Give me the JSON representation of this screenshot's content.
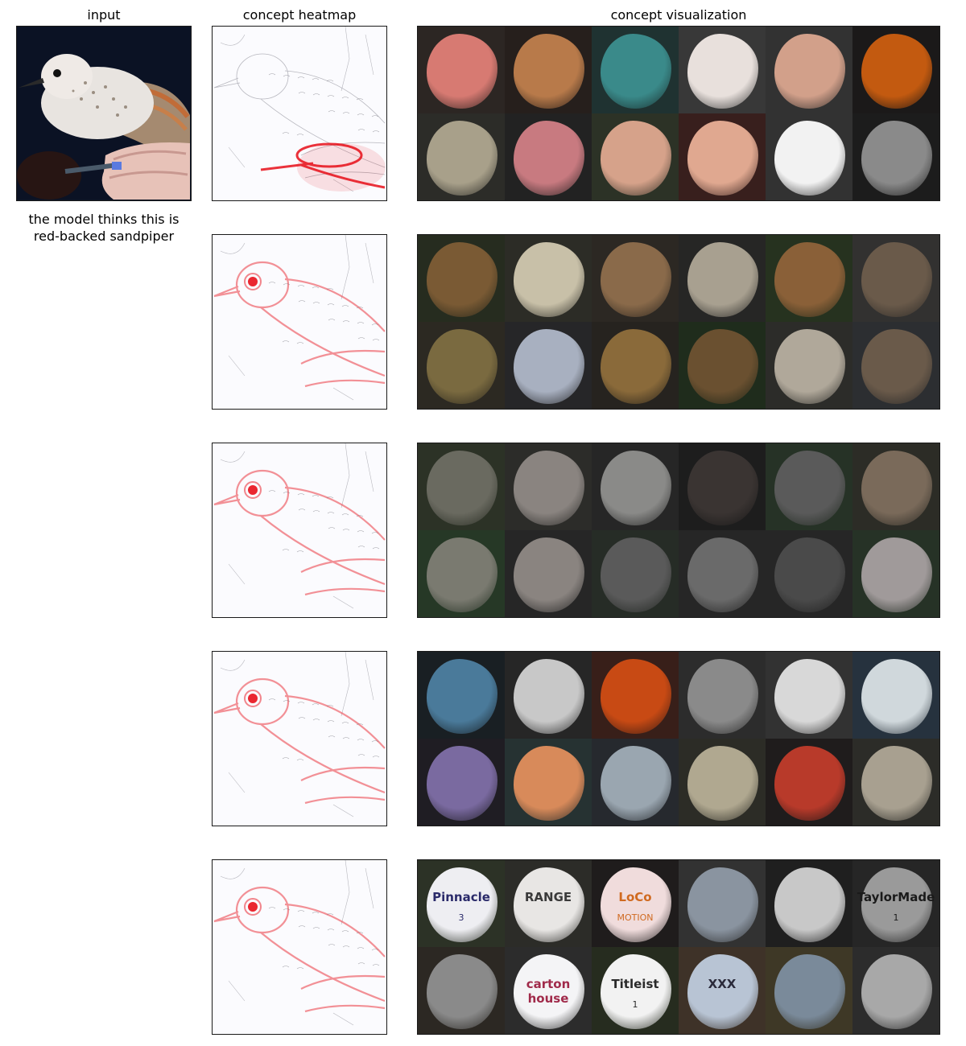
{
  "headers": {
    "input": "input",
    "heatmap": "concept heatmap",
    "visualization": "concept visualization"
  },
  "caption_line1": "the model thinks this is",
  "caption_line2": "red-backed sandpiper",
  "colors": {
    "heat_red": "#e8101a",
    "heat_blue": "#5d6ad8",
    "panel_border": "#1a1a1a"
  },
  "concept_rows": [
    {
      "heat_focus": "hand",
      "tiles": [
        {
          "subject": "hand-pencil",
          "bg": "#3b2a22",
          "blob": "#d77a72"
        },
        {
          "subject": "hand-torch",
          "bg": "#2a1a10",
          "blob": "#b87a4a"
        },
        {
          "subject": "hand-cutting-mat",
          "bg": "#1a4a48",
          "blob": "#3a8a8a"
        },
        {
          "subject": "hand-pen",
          "bg": "#5a5a5a",
          "blob": "#e8e0dc"
        },
        {
          "subject": "hand-fingers",
          "bg": "#4a4a4a",
          "blob": "#d2a08a"
        },
        {
          "subject": "orange-light",
          "bg": "#0e0a08",
          "blob": "#c35a10"
        },
        {
          "subject": "hand-bird",
          "bg": "#3a3a30",
          "blob": "#a8a08a"
        },
        {
          "subject": "hand-ring",
          "bg": "#202020",
          "blob": "#c87a80"
        },
        {
          "subject": "child-hand",
          "bg": "#3a4a2a",
          "blob": "#d6a28a"
        },
        {
          "subject": "hand-cards",
          "bg": "#5a1a14",
          "blob": "#e0a890"
        },
        {
          "subject": "hand-phone",
          "bg": "#4a4a4a",
          "blob": "#f2f2f2"
        },
        {
          "subject": "hand-bw",
          "bg": "#111111",
          "blob": "#8a8a8a"
        }
      ]
    },
    {
      "heat_focus": "eye",
      "tiles": [
        {
          "subject": "quail",
          "bg": "#2a3a1a",
          "blob": "#7a5a34"
        },
        {
          "subject": "ptarmigan",
          "bg": "#3a3a2a",
          "blob": "#c8c0a8"
        },
        {
          "subject": "grouse-head",
          "bg": "#3a3024",
          "blob": "#8a6a4a"
        },
        {
          "subject": "sandpiper-sand",
          "bg": "#2a2a28",
          "blob": "#a8a090"
        },
        {
          "subject": "grouse-green",
          "bg": "#2a4a1a",
          "blob": "#8a6038"
        },
        {
          "subject": "bird-feathers",
          "bg": "#4a4844",
          "blob": "#6a5a4a"
        },
        {
          "subject": "snipe",
          "bg": "#3a3420",
          "blob": "#7a6a40"
        },
        {
          "subject": "sandpiper-water",
          "bg": "#2a2a30",
          "blob": "#a8b0c0"
        },
        {
          "subject": "grouse-close",
          "bg": "#2a2418",
          "blob": "#8a6a3a"
        },
        {
          "subject": "grouse-leaves",
          "bg": "#1a3a10",
          "blob": "#6a5030"
        },
        {
          "subject": "curlew",
          "bg": "#3a3a34",
          "blob": "#b0a89a"
        },
        {
          "subject": "crested-bird",
          "bg": "#3a4048",
          "blob": "#6a5a4a"
        }
      ]
    },
    {
      "heat_focus": "eye",
      "tiles": [
        {
          "subject": "person-dog",
          "bg": "#3a4a2a",
          "blob": "#6a6a60"
        },
        {
          "subject": "grey-animal",
          "bg": "#3a3a34",
          "blob": "#8a8480"
        },
        {
          "subject": "owl",
          "bg": "#2a2a2a",
          "blob": "#8a8a88"
        },
        {
          "subject": "dark-figure",
          "bg": "#141414",
          "blob": "#3a3432"
        },
        {
          "subject": "fluffy-dog",
          "bg": "#2a4a2a",
          "blob": "#5a5a5a"
        },
        {
          "subject": "brown-dog",
          "bg": "#3a3a2a",
          "blob": "#7a6a5a"
        },
        {
          "subject": "sloth",
          "bg": "#2a5a2a",
          "blob": "#7a7a70"
        },
        {
          "subject": "owl-face",
          "bg": "#2a2a2a",
          "blob": "#8a8480"
        },
        {
          "subject": "owl-branch",
          "bg": "#2a3a2a",
          "blob": "#5a5a5a"
        },
        {
          "subject": "people-dog",
          "bg": "#2a2a2a",
          "blob": "#6a6a6a"
        },
        {
          "subject": "wolfhound",
          "bg": "#2a2a2a",
          "blob": "#4a4a4a"
        },
        {
          "subject": "koala",
          "bg": "#2a4a2a",
          "blob": "#a09a9a"
        }
      ]
    },
    {
      "heat_focus": "eye",
      "tiles": [
        {
          "subject": "blinds",
          "bg": "#0a1a24",
          "blob": "#4a7a9a"
        },
        {
          "subject": "cruise-ship",
          "bg": "#2a2a2a",
          "blob": "#c8c8c8"
        },
        {
          "subject": "orange-stripes",
          "bg": "#5a1a0a",
          "blob": "#c84a14"
        },
        {
          "subject": "ship-dock",
          "bg": "#3a3a3a",
          "blob": "#8a8a8a"
        },
        {
          "subject": "ship-white",
          "bg": "#4a4a4a",
          "blob": "#d8d8d8"
        },
        {
          "subject": "ship-sky",
          "bg": "#2a4a6a",
          "blob": "#d0d8dc"
        },
        {
          "subject": "lionfish-purple",
          "bg": "#1a1424",
          "blob": "#7a6aa0"
        },
        {
          "subject": "lionfish-orange",
          "bg": "#2a4a4a",
          "blob": "#d88a5a"
        },
        {
          "subject": "ship-sea",
          "bg": "#2a3440",
          "blob": "#9aa6b0"
        },
        {
          "subject": "zebra",
          "bg": "#3a3a2a",
          "blob": "#b0a890"
        },
        {
          "subject": "lionfish-red",
          "bg": "#1a1010",
          "blob": "#b83a2a"
        },
        {
          "subject": "zebra-side",
          "bg": "#3a3a30",
          "blob": "#a8a090"
        }
      ]
    },
    {
      "heat_focus": "eye",
      "tiles": [
        {
          "subject": "golf-ball",
          "bg": "#3a4a2a",
          "blob": "#eeeef2",
          "label": "Pinnacle",
          "sub": "3",
          "ink": "#2a2a6a"
        },
        {
          "subject": "golf-ball",
          "bg": "#3a3a30",
          "blob": "#e8e6e4",
          "label": "RANGE",
          "sub": "",
          "ink": "#3a3a3a"
        },
        {
          "subject": "golf-ball",
          "bg": "#1a1010",
          "blob": "#f0dcdc",
          "label": "LoCo",
          "sub": "MOTION",
          "ink": "#d06a20"
        },
        {
          "subject": "parrot-feathers",
          "bg": "#4a4a4a",
          "blob": "#8a94a0"
        },
        {
          "subject": "golf-ball-bw",
          "bg": "#1a1a1a",
          "blob": "#c8c8c8"
        },
        {
          "subject": "golf-ball",
          "bg": "#2a2a2a",
          "blob": "#9a9a9a",
          "label": "TaylorMade",
          "sub": "1",
          "ink": "#1a1a1a"
        },
        {
          "subject": "grey-parrot",
          "bg": "#3a3024",
          "blob": "#8a8a8a"
        },
        {
          "subject": "golf-ball",
          "bg": "#3a3a3a",
          "blob": "#f4f4f6",
          "label": "carton house",
          "sub": "",
          "ink": "#a02a4a"
        },
        {
          "subject": "golf-ball",
          "bg": "#2a3a1a",
          "blob": "#f2f2f2",
          "label": "Titleist",
          "sub": "1",
          "ink": "#2a2a2a"
        },
        {
          "subject": "golf-ball",
          "bg": "#6a4a30",
          "blob": "#b8c4d4",
          "label": "XXX",
          "sub": "",
          "ink": "#2a2a3a"
        },
        {
          "subject": "parrot-wing",
          "bg": "#6a5a2a",
          "blob": "#7a8a9a"
        },
        {
          "subject": "grey-parrot-standing",
          "bg": "#3a3a3a",
          "blob": "#a8a8a8"
        }
      ]
    }
  ]
}
